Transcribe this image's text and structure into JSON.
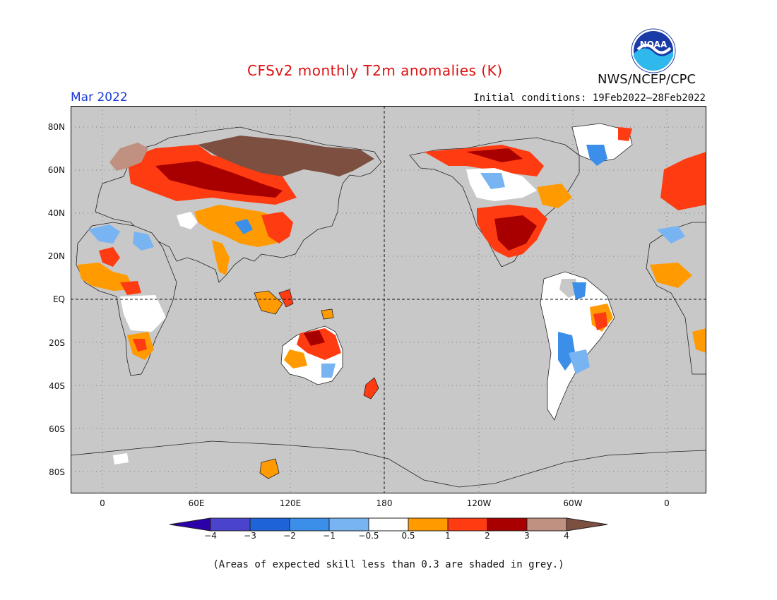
{
  "title": "CFSv2 monthly T2m anomalies (K)",
  "agency": "NWS/NCEP/CPC",
  "logo_text": "NOAA",
  "valid_month": "Mar 2022",
  "initial_conditions": "Initial conditions: 19Feb2022–28Feb2022",
  "lat_labels": [
    "80N",
    "60N",
    "40N",
    "20N",
    "EQ",
    "20S",
    "40S",
    "60S",
    "80S"
  ],
  "lon_labels": [
    "0",
    "60E",
    "120E",
    "180",
    "120W",
    "60W",
    "0"
  ],
  "colorbar": {
    "ticks": [
      "−4",
      "−3",
      "−2",
      "−1",
      "−0.5",
      "0.5",
      "1",
      "2",
      "3",
      "4"
    ],
    "colors": [
      "#2c00a8",
      "#4a44cc",
      "#1f63d8",
      "#3c8fe8",
      "#78b4f2",
      "#ffffff",
      "#ff9b00",
      "#ff3b12",
      "#a80000",
      "#c09080",
      "#7d4f40"
    ]
  },
  "footnote": "(Areas of expected skill less than 0.3 are shaded in grey.)",
  "colors": {
    "title": "#dd1111",
    "month": "#1a3ad6",
    "skill_grey": "#c8c8c8"
  }
}
